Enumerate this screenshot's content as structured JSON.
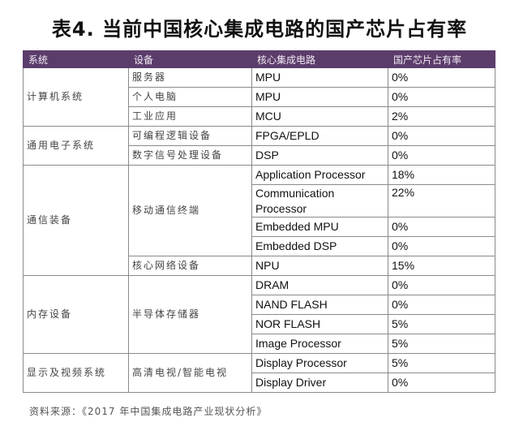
{
  "title": "表4. 当前中国核心集成电路的国产芯片占有率",
  "headers": [
    "系统",
    "设备",
    "核心集成电路",
    "国产芯片占有率"
  ],
  "groups": [
    {
      "system": "计算机系统",
      "devices": [
        {
          "name": "服务器",
          "chips": [
            {
              "chip": "MPU",
              "share": "0%"
            }
          ]
        },
        {
          "name": "个人电脑",
          "chips": [
            {
              "chip": "MPU",
              "share": "0%"
            }
          ]
        },
        {
          "name": "工业应用",
          "chips": [
            {
              "chip": "MCU",
              "share": "2%"
            }
          ]
        }
      ]
    },
    {
      "system": "通用电子系统",
      "devices": [
        {
          "name": "可编程逻辑设备",
          "chips": [
            {
              "chip": "FPGA/EPLD",
              "share": "0%"
            }
          ]
        },
        {
          "name": "数字信号处理设备",
          "chips": [
            {
              "chip": "DSP",
              "share": "0%"
            }
          ]
        }
      ]
    },
    {
      "system": "通信装备",
      "devices": [
        {
          "name": "移动通信终端",
          "chips": [
            {
              "chip": "Application Processor",
              "share": "18%"
            },
            {
              "chip": "Communication Processor",
              "share": "22%"
            },
            {
              "chip": "Embedded MPU",
              "share": "0%"
            },
            {
              "chip": "Embedded DSP",
              "share": "0%"
            }
          ]
        },
        {
          "name": "核心网络设备",
          "chips": [
            {
              "chip": "NPU",
              "share": "15%"
            }
          ]
        }
      ]
    },
    {
      "system": "内存设备",
      "devices": [
        {
          "name": "半导体存储器",
          "chips": [
            {
              "chip": "DRAM",
              "share": "0%"
            },
            {
              "chip": "NAND FLASH",
              "share": "0%"
            },
            {
              "chip": "NOR FLASH",
              "share": "5%"
            },
            {
              "chip": "Image Processor",
              "share": "5%"
            }
          ]
        }
      ]
    },
    {
      "system": "显示及视频系统",
      "devices": [
        {
          "name": "高清电视/智能电视",
          "chips": [
            {
              "chip": "Display Processor",
              "share": "5%"
            },
            {
              "chip": "Display Driver",
              "share": "0%"
            }
          ]
        }
      ]
    }
  ],
  "source": "资料来源：《2017 年中国集成电路产业现状分析》"
}
